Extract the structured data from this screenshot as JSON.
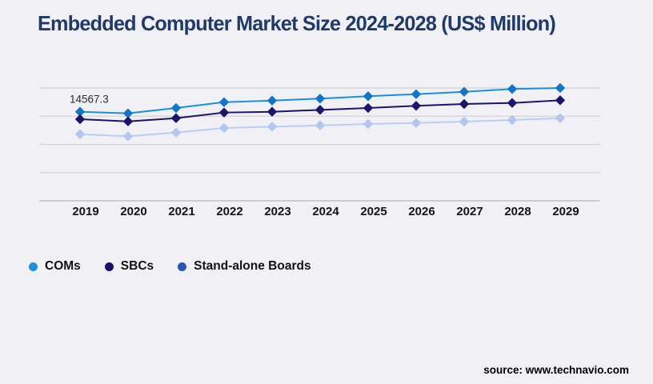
{
  "page": {
    "source": "source: www.technavio.com",
    "background": "#f1f1f5",
    "title_color": "#1e3a6b"
  },
  "chart_data": {
    "type": "line",
    "title": "Embedded Computer Market Size 2024-2028 (US$ Million)",
    "xlabel": "",
    "ylabel": "",
    "categories": [
      "2019",
      "2020",
      "2021",
      "2022",
      "2023",
      "2024",
      "2025",
      "2026",
      "2027",
      "2028",
      "2029"
    ],
    "series": [
      {
        "name": "COMs",
        "line_color": "#1b8fdc",
        "marker_color": "#1176c8",
        "legend_color": "#1e90dd",
        "values": [
          14567.3,
          14310,
          15180,
          16140,
          16400,
          16720,
          17110,
          17450,
          17840,
          18290,
          18460
        ]
      },
      {
        "name": "SBCs",
        "line_color": "#1b146b",
        "marker_color": "#1b146b",
        "legend_color": "#1a1168",
        "values": [
          13350,
          13000,
          13520,
          14440,
          14570,
          14880,
          15180,
          15540,
          15840,
          16010,
          16450
        ]
      },
      {
        "name": "Stand-alone Boards",
        "line_color": "#bacdf4",
        "marker_color": "#b3c6ef",
        "legend_color": "#2754b6",
        "values": [
          10900,
          10560,
          11170,
          11910,
          12130,
          12340,
          12570,
          12740,
          12960,
          13220,
          13520
        ]
      }
    ],
    "annotation": {
      "text": "14567.3",
      "series_index": 0,
      "category_index": 0
    },
    "marker": "diamond",
    "ylim": [
      0,
      21700
    ],
    "gridline_count": 5,
    "grid_color": "#d2d2d8",
    "axis_color": "#c3c3c9",
    "legend_position": "bottom-left"
  }
}
